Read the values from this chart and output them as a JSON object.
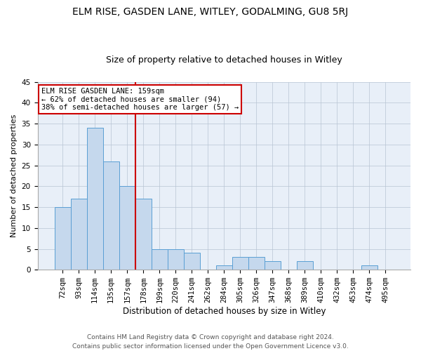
{
  "title1": "ELM RISE, GASDEN LANE, WITLEY, GODALMING, GU8 5RJ",
  "title2": "Size of property relative to detached houses in Witley",
  "xlabel": "Distribution of detached houses by size in Witley",
  "ylabel": "Number of detached properties",
  "categories": [
    "72sqm",
    "93sqm",
    "114sqm",
    "135sqm",
    "157sqm",
    "178sqm",
    "199sqm",
    "220sqm",
    "241sqm",
    "262sqm",
    "284sqm",
    "305sqm",
    "326sqm",
    "347sqm",
    "368sqm",
    "389sqm",
    "410sqm",
    "432sqm",
    "453sqm",
    "474sqm",
    "495sqm"
  ],
  "values": [
    15,
    17,
    34,
    26,
    20,
    17,
    5,
    5,
    4,
    0,
    1,
    3,
    3,
    2,
    0,
    2,
    0,
    0,
    0,
    1,
    0
  ],
  "bar_color": "#c5d8ed",
  "bar_edge_color": "#5a9fd4",
  "vline_x_index": 4.5,
  "vline_color": "#cc0000",
  "annotation_line1": "ELM RISE GASDEN LANE: 159sqm",
  "annotation_line2": "← 62% of detached houses are smaller (94)",
  "annotation_line3": "38% of semi-detached houses are larger (57) →",
  "annotation_box_color": "#ffffff",
  "annotation_box_edge": "#cc0000",
  "ylim": [
    0,
    45
  ],
  "yticks": [
    0,
    5,
    10,
    15,
    20,
    25,
    30,
    35,
    40,
    45
  ],
  "background_color": "#e8eff8",
  "footer1": "Contains HM Land Registry data © Crown copyright and database right 2024.",
  "footer2": "Contains public sector information licensed under the Open Government Licence v3.0.",
  "title1_fontsize": 10,
  "title2_fontsize": 9,
  "xlabel_fontsize": 8.5,
  "ylabel_fontsize": 8,
  "tick_fontsize": 7.5,
  "annot_fontsize": 7.5,
  "footer_fontsize": 6.5
}
